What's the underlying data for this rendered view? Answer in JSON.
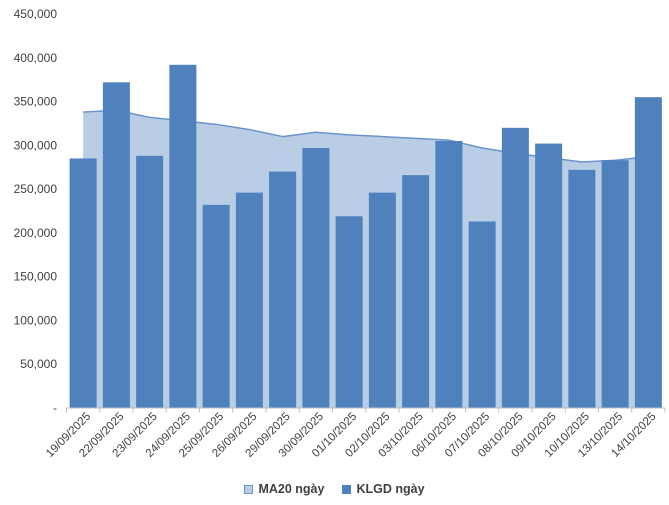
{
  "chart_data": {
    "type": "bar",
    "title": "",
    "xlabel": "",
    "ylabel": "",
    "categories": [
      "19/09/2025",
      "22/09/2025",
      "23/09/2025",
      "24/09/2025",
      "25/09/2025",
      "26/09/2025",
      "29/09/2025",
      "30/09/2025",
      "01/10/2025",
      "02/10/2025",
      "03/10/2025",
      "06/10/2025",
      "07/10/2025",
      "08/10/2025",
      "09/10/2025",
      "10/10/2025",
      "13/10/2025",
      "14/10/2025"
    ],
    "series": [
      {
        "name": "MA20 ngày",
        "render": "area",
        "fill_color": "#B9CDE5",
        "line_color": "#6C94CC",
        "values": [
          338000,
          340000,
          332000,
          328000,
          324000,
          318000,
          310000,
          315000,
          312000,
          310000,
          308000,
          306000,
          297000,
          291000,
          286000,
          281000,
          283000,
          287000
        ]
      },
      {
        "name": "KLGD ngày",
        "render": "column",
        "fill_color": "#4F81BD",
        "values": [
          285000,
          372000,
          288000,
          392000,
          232000,
          246000,
          270000,
          297000,
          219000,
          246000,
          266000,
          305000,
          213000,
          320000,
          302000,
          272000,
          283000,
          355000
        ]
      }
    ],
    "ylim": [
      0,
      450000
    ],
    "ytick_step": 50000,
    "zero_tick_label": "-",
    "grid": false,
    "legend_position": "bottom",
    "axis_color": "#BFBFBF",
    "label_color": "#404040"
  }
}
